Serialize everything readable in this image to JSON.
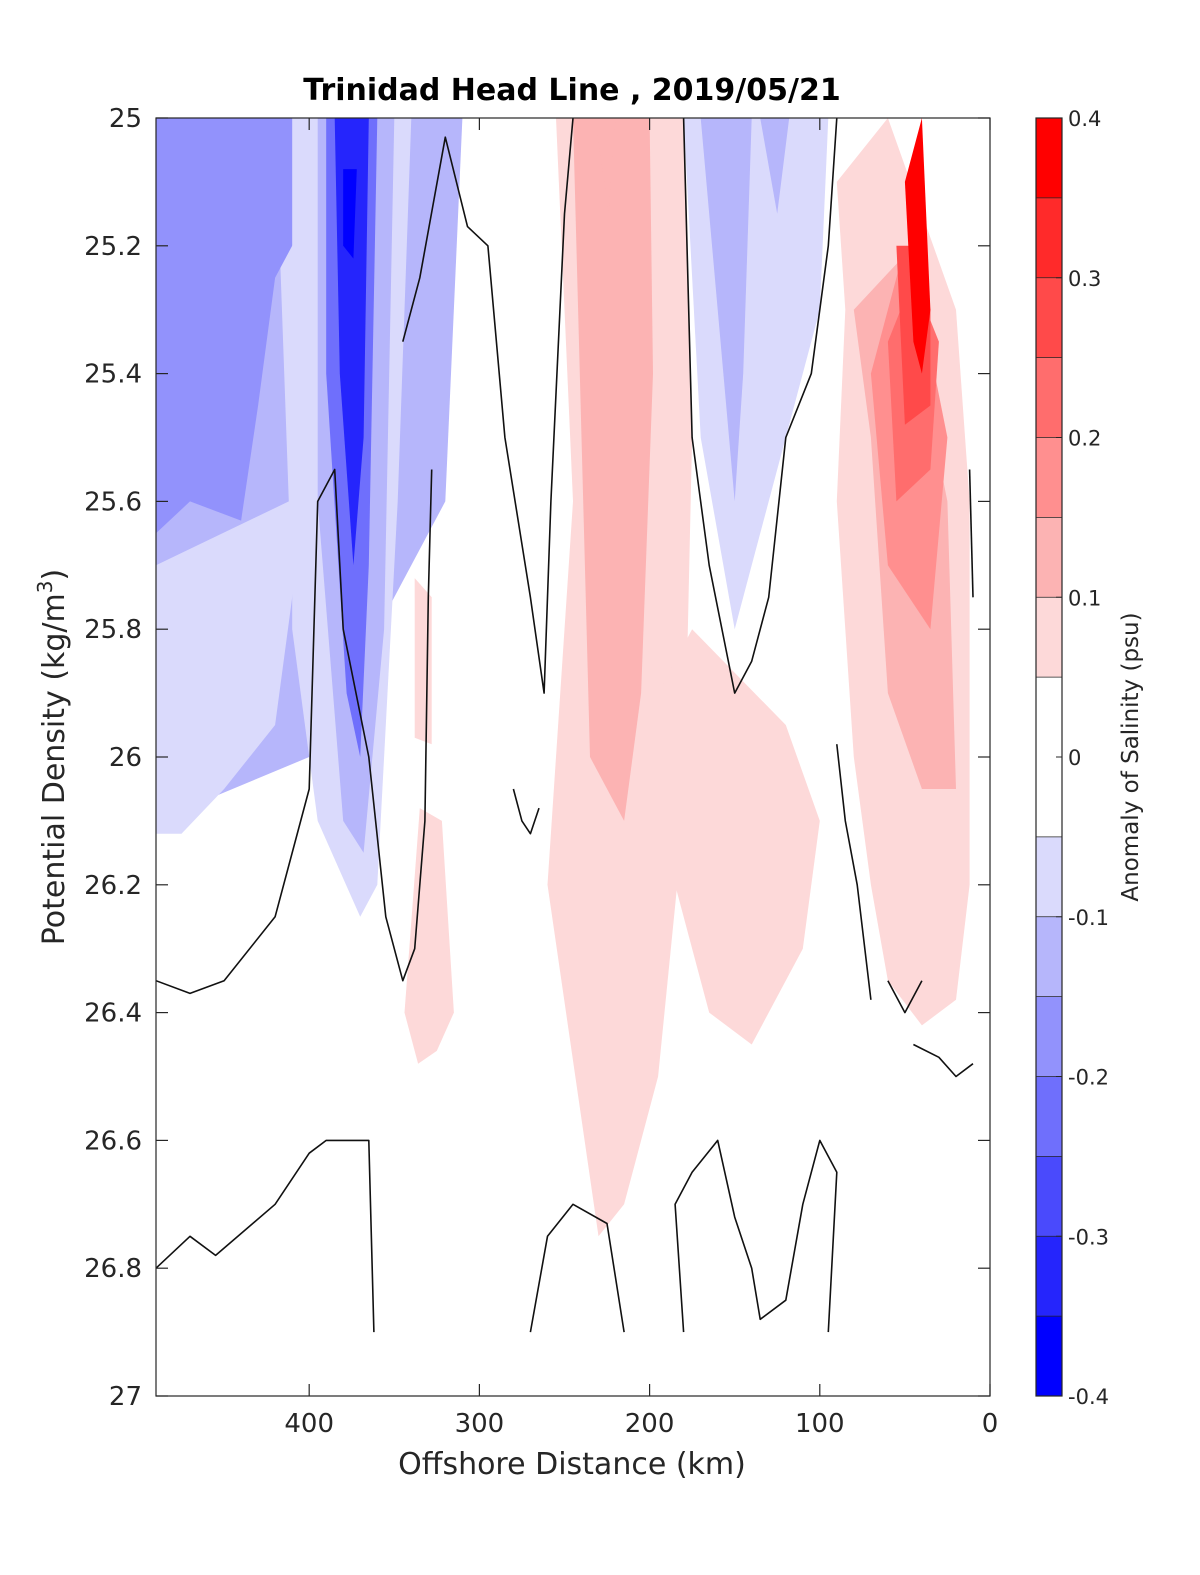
{
  "chart_data": {
    "type": "heatmap",
    "subtype": "filled-contour section",
    "title": "Trinidad Head Line , 2019/05/21",
    "xlabel": "Offshore Distance (km)",
    "ylabel_main": "Potential Density (kg/m",
    "ylabel_sup": "3",
    "ylabel_close": ")",
    "x_reversed": true,
    "xlim": [
      490,
      0
    ],
    "ylim": [
      25,
      27
    ],
    "y_reversed": true,
    "xticks": [
      400,
      300,
      200,
      100,
      0
    ],
    "xtick_labels": [
      "400",
      "300",
      "200",
      "100",
      "0"
    ],
    "yticks": [
      25,
      25.2,
      25.4,
      25.6,
      25.8,
      26,
      26.2,
      26.4,
      26.6,
      26.8,
      27
    ],
    "ytick_labels": [
      "25",
      "25.2",
      "25.4",
      "25.6",
      "25.8",
      "26",
      "26.2",
      "26.4",
      "26.6",
      "26.8",
      "27"
    ],
    "colorbar": {
      "label": "Anomaly of Salinity (psu)",
      "limits": [
        -0.4,
        0.4
      ],
      "ticks": [
        0.4,
        0.3,
        0.2,
        0.1,
        0,
        -0.1,
        -0.2,
        -0.3,
        -0.4
      ],
      "tick_labels": [
        "0.4",
        "0.3",
        "0.2",
        "0.1",
        "0",
        "-0.1",
        "-0.2",
        "-0.3",
        "-0.4"
      ],
      "levels_top_to_bottom": [
        {
          "min": 0.35,
          "max": 0.4,
          "color": "#ff0000"
        },
        {
          "min": 0.3,
          "max": 0.35,
          "color": "#ff2a2a"
        },
        {
          "min": 0.25,
          "max": 0.3,
          "color": "#ff4a4a"
        },
        {
          "min": 0.2,
          "max": 0.25,
          "color": "#ff6d6d"
        },
        {
          "min": 0.15,
          "max": 0.2,
          "color": "#ff8f8f"
        },
        {
          "min": 0.1,
          "max": 0.15,
          "color": "#fcb3b3"
        },
        {
          "min": 0.05,
          "max": 0.1,
          "color": "#fdd9d9"
        },
        {
          "min": -0.05,
          "max": 0.05,
          "color": "#ffffff"
        },
        {
          "min": -0.1,
          "max": -0.05,
          "color": "#dadafc"
        },
        {
          "min": -0.15,
          "max": -0.1,
          "color": "#b6b6fb"
        },
        {
          "min": -0.2,
          "max": -0.15,
          "color": "#9292fc"
        },
        {
          "min": -0.25,
          "max": -0.2,
          "color": "#6f6ffc"
        },
        {
          "min": -0.3,
          "max": -0.25,
          "color": "#4a4afc"
        },
        {
          "min": -0.35,
          "max": -0.3,
          "color": "#2525fc"
        },
        {
          "min": -0.4,
          "max": -0.35,
          "color": "#0000ff"
        }
      ]
    },
    "regions": [
      {
        "anomaly": -0.15,
        "polygon": [
          [
            490,
            25
          ],
          [
            310,
            25
          ],
          [
            320,
            25.6
          ],
          [
            400,
            26
          ],
          [
            490,
            26.1
          ]
        ]
      },
      {
        "anomaly": -0.08,
        "polygon": [
          [
            490,
            25.7
          ],
          [
            490,
            26.12
          ],
          [
            475,
            26.12
          ],
          [
            450,
            26.05
          ],
          [
            420,
            25.95
          ],
          [
            410,
            25.75
          ],
          [
            400,
            25.4
          ],
          [
            400,
            25
          ],
          [
            420,
            25
          ],
          [
            412,
            25.6
          ]
        ]
      },
      {
        "anomaly": -0.2,
        "polygon": [
          [
            490,
            25
          ],
          [
            490,
            25.4
          ],
          [
            470,
            25.3
          ],
          [
            440,
            25.32
          ],
          [
            420,
            25.18
          ],
          [
            410,
            25
          ],
          [
            470,
            25
          ]
        ]
      },
      {
        "anomaly": -0.2,
        "polygon": [
          [
            490,
            25
          ],
          [
            490,
            25.65
          ],
          [
            470,
            25.6
          ],
          [
            440,
            25.63
          ],
          [
            430,
            25.45
          ],
          [
            420,
            25.25
          ],
          [
            400,
            25.15
          ],
          [
            395,
            25
          ],
          [
            470,
            25
          ]
        ]
      },
      {
        "anomaly": -0.08,
        "polygon": [
          [
            410,
            25
          ],
          [
            340,
            25
          ],
          [
            348,
            25.6
          ],
          [
            360,
            26.2
          ],
          [
            370,
            26.25
          ],
          [
            395,
            26.1
          ],
          [
            410,
            25.8
          ]
        ]
      },
      {
        "anomaly": -0.15,
        "polygon": [
          [
            395,
            25
          ],
          [
            350,
            25
          ],
          [
            356,
            25.8
          ],
          [
            368,
            26.15
          ],
          [
            380,
            26.1
          ],
          [
            395,
            25.6
          ]
        ]
      },
      {
        "anomaly": -0.25,
        "polygon": [
          [
            390,
            25
          ],
          [
            360,
            25
          ],
          [
            365,
            25.7
          ],
          [
            370,
            26
          ],
          [
            378,
            25.9
          ],
          [
            390,
            25.4
          ]
        ]
      },
      {
        "anomaly": -0.33,
        "polygon": [
          [
            385,
            25
          ],
          [
            365,
            25
          ],
          [
            368,
            25.5
          ],
          [
            374,
            25.7
          ],
          [
            382,
            25.4
          ]
        ]
      },
      {
        "anomaly": -0.38,
        "polygon": [
          [
            380,
            25.08
          ],
          [
            372,
            25.08
          ],
          [
            374,
            25.22
          ],
          [
            380,
            25.2
          ]
        ]
      },
      {
        "anomaly": 0.07,
        "polygon": [
          [
            338,
            25.72
          ],
          [
            328,
            25.75
          ],
          [
            328,
            25.98
          ],
          [
            338,
            25.97
          ]
        ]
      },
      {
        "anomaly": 0.07,
        "polygon": [
          [
            335,
            26.08
          ],
          [
            344,
            26.4
          ],
          [
            336,
            26.48
          ],
          [
            325,
            26.46
          ],
          [
            315,
            26.4
          ],
          [
            322,
            26.1
          ]
        ]
      },
      {
        "anomaly": 0.07,
        "polygon": [
          [
            255,
            25
          ],
          [
            180,
            25
          ],
          [
            175,
            25.5
          ],
          [
            180,
            26.1
          ],
          [
            195,
            26.5
          ],
          [
            215,
            26.7
          ],
          [
            230,
            26.75
          ],
          [
            260,
            26.2
          ],
          [
            245,
            25.6
          ]
        ]
      },
      {
        "anomaly": 0.12,
        "polygon": [
          [
            245,
            25
          ],
          [
            200,
            25
          ],
          [
            198,
            25.4
          ],
          [
            205,
            25.9
          ],
          [
            215,
            26.1
          ],
          [
            235,
            26.0
          ],
          [
            240,
            25.5
          ]
        ]
      },
      {
        "anomaly": 0.07,
        "polygon": [
          [
            195,
            25.9
          ],
          [
            175,
            25.8
          ],
          [
            120,
            25.95
          ],
          [
            100,
            26.1
          ],
          [
            110,
            26.3
          ],
          [
            140,
            26.45
          ],
          [
            165,
            26.4
          ],
          [
            185,
            26.2
          ]
        ]
      },
      {
        "anomaly": 0.12,
        "polygon": [
          [
            232,
            25
          ],
          [
            220,
            25
          ],
          [
            224,
            25.15
          ]
        ]
      },
      {
        "anomaly": -0.08,
        "polygon": [
          [
            180,
            25
          ],
          [
            95,
            25
          ],
          [
            100,
            25.3
          ],
          [
            140,
            25.7
          ],
          [
            150,
            25.8
          ],
          [
            170,
            25.5
          ]
        ]
      },
      {
        "anomaly": -0.15,
        "polygon": [
          [
            170,
            25
          ],
          [
            140,
            25
          ],
          [
            145,
            25.4
          ],
          [
            150,
            25.6
          ],
          [
            160,
            25.3
          ]
        ]
      },
      {
        "anomaly": -0.15,
        "polygon": [
          [
            135,
            25
          ],
          [
            118,
            25
          ],
          [
            125,
            25.15
          ]
        ]
      },
      {
        "anomaly": 0.07,
        "polygon": [
          [
            90,
            25.1
          ],
          [
            85,
            25.3
          ],
          [
            90,
            25.6
          ],
          [
            80,
            26.0
          ],
          [
            70,
            26.2
          ],
          [
            60,
            26.35
          ],
          [
            40,
            26.42
          ],
          [
            20,
            26.38
          ],
          [
            12,
            26.2
          ],
          [
            12,
            25.6
          ],
          [
            20,
            25.3
          ],
          [
            60,
            25
          ]
        ]
      },
      {
        "anomaly": 0.12,
        "polygon": [
          [
            80,
            25.3
          ],
          [
            70,
            25.5
          ],
          [
            60,
            25.9
          ],
          [
            40,
            26.05
          ],
          [
            20,
            26.05
          ],
          [
            25,
            25.6
          ],
          [
            40,
            25.4
          ],
          [
            45,
            25.2
          ]
        ]
      },
      {
        "anomaly": 0.18,
        "polygon": [
          [
            70,
            25.4
          ],
          [
            60,
            25.7
          ],
          [
            35,
            25.8
          ],
          [
            25,
            25.5
          ],
          [
            40,
            25.3
          ],
          [
            50,
            25.2
          ]
        ]
      },
      {
        "anomaly": 0.23,
        "polygon": [
          [
            60,
            25.35
          ],
          [
            55,
            25.6
          ],
          [
            35,
            25.55
          ],
          [
            30,
            25.35
          ],
          [
            45,
            25.25
          ]
        ]
      },
      {
        "anomaly": 0.28,
        "polygon": [
          [
            55,
            25.2
          ],
          [
            50,
            25.48
          ],
          [
            35,
            25.45
          ],
          [
            35,
            25.3
          ],
          [
            45,
            25.2
          ]
        ]
      },
      {
        "anomaly": 0.36,
        "polygon": [
          [
            50,
            25.1
          ],
          [
            45,
            25.35
          ],
          [
            40,
            25.4
          ],
          [
            35,
            25.3
          ],
          [
            40,
            25
          ]
        ]
      }
    ],
    "contour_lines": [
      {
        "level": 0,
        "points": [
          [
            490,
            26.35
          ],
          [
            470,
            26.37
          ],
          [
            450,
            26.35
          ],
          [
            420,
            26.25
          ],
          [
            400,
            26.05
          ],
          [
            395,
            25.6
          ],
          [
            385,
            25.55
          ],
          [
            380,
            25.8
          ],
          [
            365,
            26.0
          ],
          [
            355,
            26.25
          ],
          [
            345,
            26.35
          ],
          [
            338,
            26.3
          ],
          [
            332,
            26.1
          ],
          [
            330,
            25.75
          ],
          [
            328,
            25.55
          ]
        ]
      },
      {
        "level": 0,
        "points": [
          [
            345,
            25.35
          ],
          [
            335,
            25.25
          ],
          [
            320,
            25.03
          ],
          [
            307,
            25.17
          ],
          [
            295,
            25.2
          ],
          [
            285,
            25.5
          ],
          [
            270,
            25.75
          ],
          [
            262,
            25.9
          ],
          [
            258,
            25.6
          ],
          [
            250,
            25.15
          ],
          [
            245,
            25
          ]
        ]
      },
      {
        "level": 0,
        "points": [
          [
            180,
            25
          ],
          [
            175,
            25.5
          ],
          [
            165,
            25.7
          ],
          [
            150,
            25.9
          ],
          [
            140,
            25.85
          ],
          [
            130,
            25.75
          ],
          [
            120,
            25.5
          ],
          [
            105,
            25.4
          ],
          [
            95,
            25.2
          ],
          [
            90,
            25
          ]
        ]
      },
      {
        "level": 0,
        "points": [
          [
            280,
            26.05
          ],
          [
            275,
            26.1
          ],
          [
            270,
            26.12
          ],
          [
            265,
            26.08
          ]
        ]
      },
      {
        "level": 0,
        "points": [
          [
            90,
            25.98
          ],
          [
            85,
            26.1
          ],
          [
            78,
            26.2
          ],
          [
            70,
            26.38
          ]
        ]
      },
      {
        "level": 0,
        "points": [
          [
            60,
            26.35
          ],
          [
            50,
            26.4
          ],
          [
            40,
            26.35
          ]
        ]
      },
      {
        "level": 0,
        "points": [
          [
            45,
            26.45
          ],
          [
            30,
            26.47
          ],
          [
            20,
            26.5
          ],
          [
            10,
            26.48
          ]
        ]
      },
      {
        "level": 0,
        "points": [
          [
            12,
            25.55
          ],
          [
            10,
            25.75
          ]
        ]
      },
      {
        "level": 0,
        "points": [
          [
            490,
            26.8
          ],
          [
            470,
            26.75
          ],
          [
            455,
            26.78
          ],
          [
            420,
            26.7
          ],
          [
            400,
            26.62
          ],
          [
            390,
            26.6
          ],
          [
            365,
            26.6
          ],
          [
            362,
            26.9
          ]
        ]
      },
      {
        "level": 0,
        "points": [
          [
            270,
            26.9
          ],
          [
            260,
            26.75
          ],
          [
            245,
            26.7
          ],
          [
            225,
            26.73
          ],
          [
            215,
            26.9
          ]
        ]
      },
      {
        "level": 0,
        "points": [
          [
            180,
            26.9
          ],
          [
            185,
            26.7
          ],
          [
            175,
            26.65
          ],
          [
            160,
            26.6
          ],
          [
            150,
            26.72
          ],
          [
            140,
            26.8
          ],
          [
            135,
            26.88
          ],
          [
            120,
            26.85
          ],
          [
            110,
            26.7
          ],
          [
            100,
            26.6
          ],
          [
            90,
            26.65
          ],
          [
            95,
            26.9
          ]
        ]
      }
    ]
  }
}
